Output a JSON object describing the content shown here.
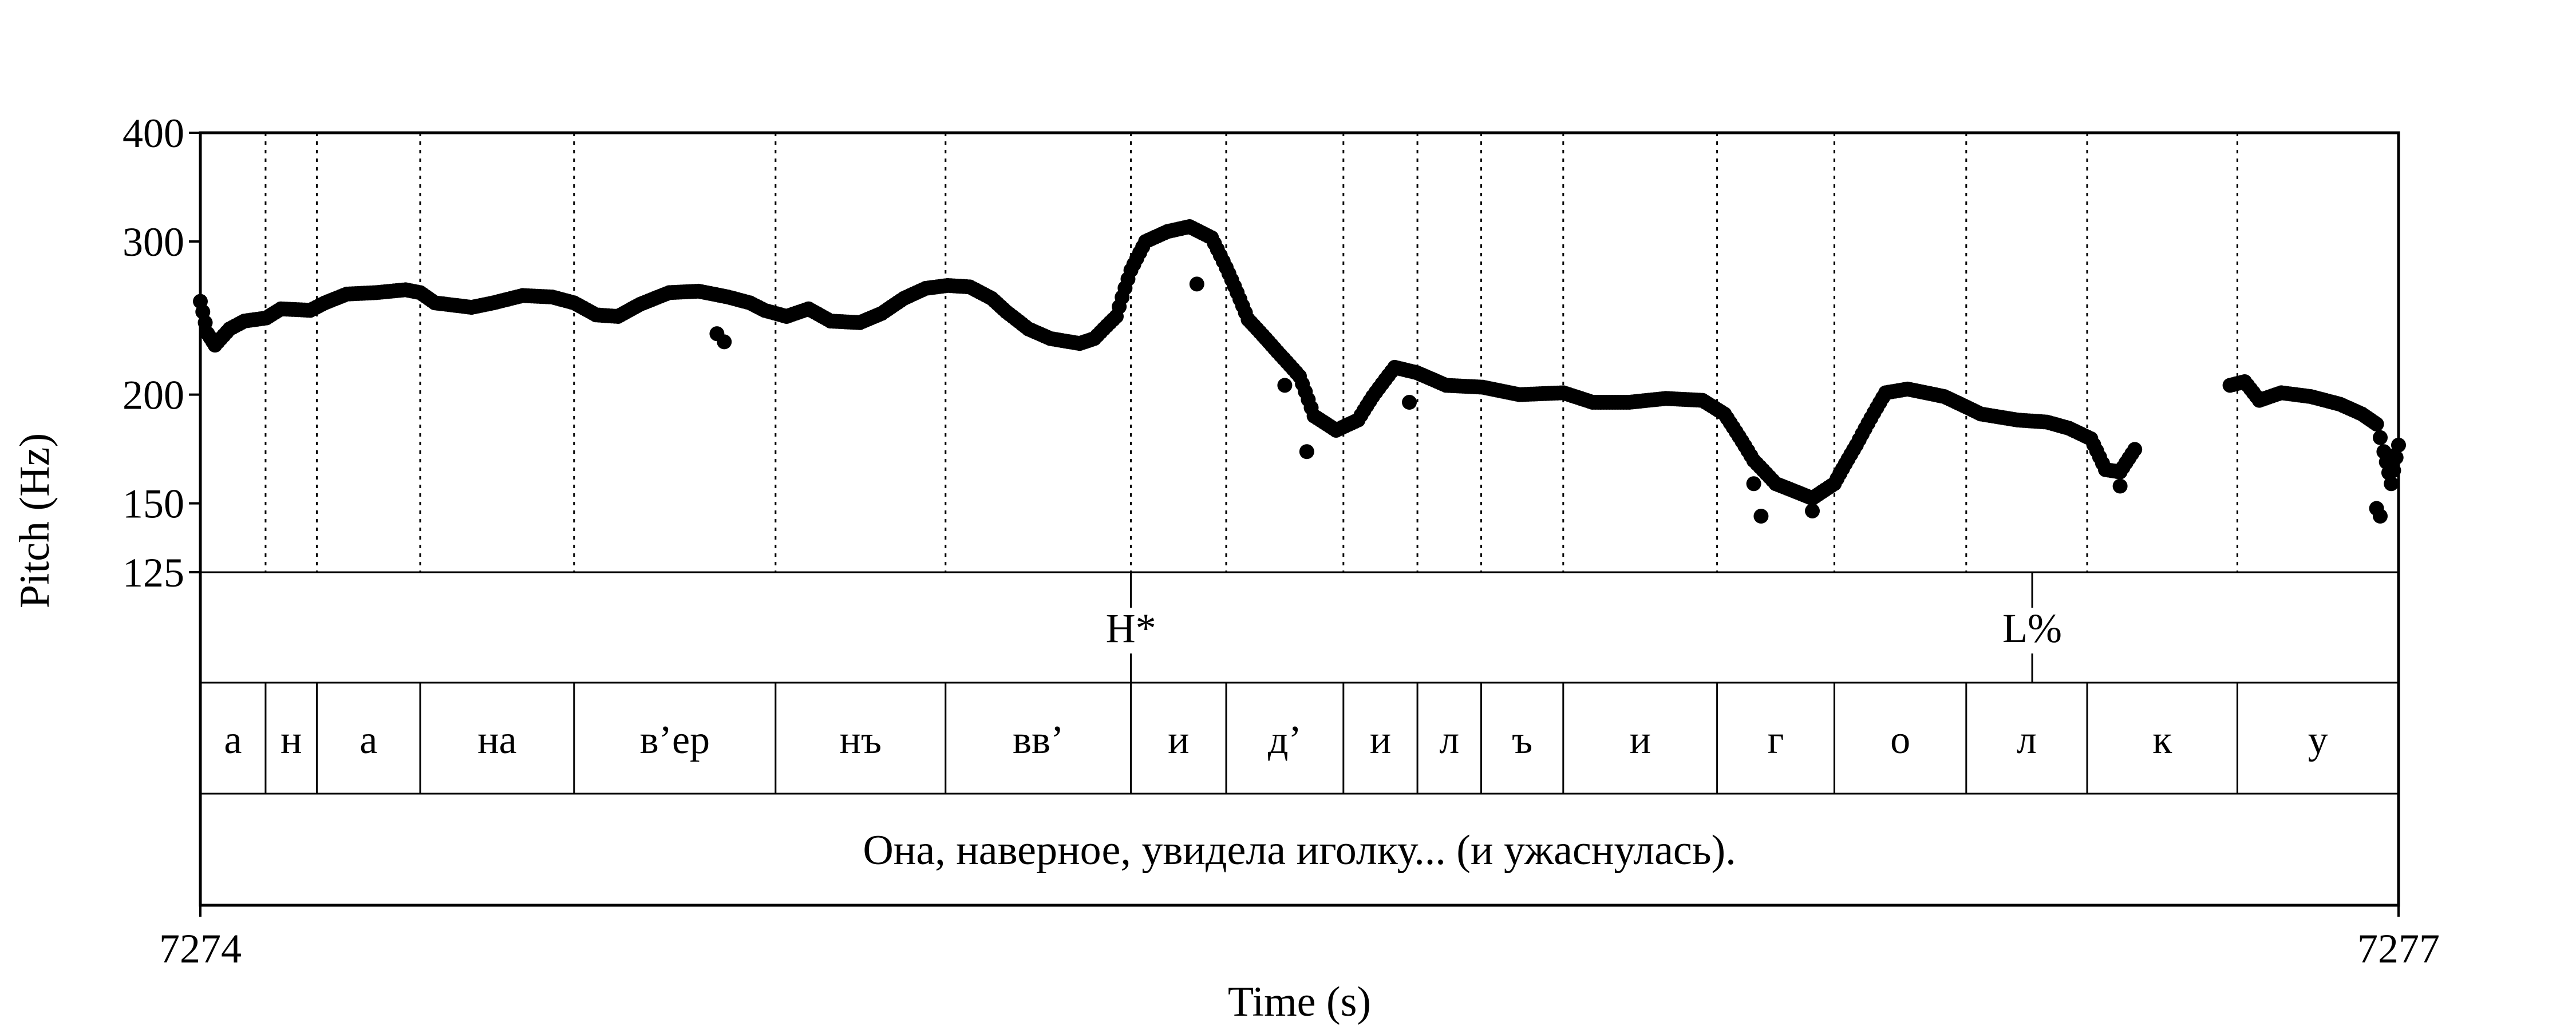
{
  "chart_data": {
    "type": "scatter",
    "title": "",
    "xlabel": "Time (s)",
    "ylabel": "Pitch (Hz)",
    "xlim": [
      7274,
      7277
    ],
    "ylim": [
      125,
      400
    ],
    "y_scale": "log",
    "x_tick_labels": [
      "7274",
      "7277"
    ],
    "y_ticks": [
      125,
      150,
      200,
      300,
      400
    ],
    "y_tick_labels": [
      "125",
      "150",
      "200",
      "300",
      "400"
    ],
    "marker_color": "#000000",
    "tiers": {
      "tones": [
        {
          "time": 7275.27,
          "label": "H*"
        },
        {
          "time": 7276.5,
          "label": "L%"
        }
      ],
      "segments": [
        {
          "start": 7274.0,
          "end": 7274.089,
          "label": "а"
        },
        {
          "start": 7274.089,
          "end": 7274.159,
          "label": "н"
        },
        {
          "start": 7274.159,
          "end": 7274.3,
          "label": "а"
        },
        {
          "start": 7274.3,
          "end": 7274.51,
          "label": "на"
        },
        {
          "start": 7274.51,
          "end": 7274.785,
          "label": "в’ер"
        },
        {
          "start": 7274.785,
          "end": 7275.017,
          "label": "нъ"
        },
        {
          "start": 7275.017,
          "end": 7275.27,
          "label": "вв’"
        },
        {
          "start": 7275.27,
          "end": 7275.4,
          "label": "и"
        },
        {
          "start": 7275.4,
          "end": 7275.56,
          "label": "д’"
        },
        {
          "start": 7275.56,
          "end": 7275.661,
          "label": "и"
        },
        {
          "start": 7275.661,
          "end": 7275.748,
          "label": "л"
        },
        {
          "start": 7275.748,
          "end": 7275.86,
          "label": "ъ"
        },
        {
          "start": 7275.86,
          "end": 7276.07,
          "label": "и"
        },
        {
          "start": 7276.07,
          "end": 7276.23,
          "label": "г"
        },
        {
          "start": 7276.23,
          "end": 7276.41,
          "label": "о"
        },
        {
          "start": 7276.41,
          "end": 7276.575,
          "label": "л"
        },
        {
          "start": 7276.575,
          "end": 7276.78,
          "label": "к"
        },
        {
          "start": 7276.78,
          "end": 7277.0,
          "label": "у"
        }
      ],
      "sentence": {
        "start": 7274.0,
        "end": 7277.0,
        "label": "Она, наверное, увидела иголку... (и ужаснулась)."
      }
    },
    "pitch_keyframes": [
      [
        7274.0,
        256
      ],
      [
        7274.01,
        235
      ],
      [
        7274.02,
        228
      ],
      [
        7274.04,
        238
      ],
      [
        7274.06,
        243
      ],
      [
        7274.09,
        245
      ],
      [
        7274.11,
        251
      ],
      [
        7274.15,
        250
      ],
      [
        7274.17,
        255
      ],
      [
        7274.2,
        261
      ],
      [
        7274.24,
        262
      ],
      [
        7274.28,
        264
      ],
      [
        7274.3,
        262
      ],
      [
        7274.32,
        255
      ],
      [
        7274.37,
        252
      ],
      [
        7274.4,
        255
      ],
      [
        7274.44,
        260
      ],
      [
        7274.48,
        259
      ],
      [
        7274.51,
        255
      ],
      [
        7274.54,
        247
      ],
      [
        7274.57,
        246
      ],
      [
        7274.6,
        254
      ],
      [
        7274.64,
        262
      ],
      [
        7274.68,
        263
      ],
      [
        7274.72,
        259
      ],
      [
        7274.75,
        255
      ],
      [
        7274.77,
        250
      ],
      [
        7274.8,
        246
      ],
      [
        7274.83,
        251
      ],
      [
        7274.86,
        243
      ],
      [
        7274.9,
        242
      ],
      [
        7274.93,
        248
      ],
      [
        7274.96,
        258
      ],
      [
        7274.99,
        265
      ],
      [
        7275.02,
        267
      ],
      [
        7275.05,
        266
      ],
      [
        7275.08,
        258
      ],
      [
        7275.1,
        249
      ],
      [
        7275.13,
        238
      ],
      [
        7275.16,
        232
      ],
      [
        7275.2,
        229
      ],
      [
        7275.22,
        232
      ],
      [
        7275.25,
        246
      ],
      [
        7275.27,
        278
      ],
      [
        7275.29,
        300
      ],
      [
        7275.32,
        308
      ],
      [
        7275.35,
        312
      ],
      [
        7275.38,
        303
      ],
      [
        7275.4,
        280
      ],
      [
        7275.43,
        244
      ],
      [
        7275.47,
        224
      ],
      [
        7275.5,
        210
      ],
      [
        7275.52,
        189
      ],
      [
        7275.55,
        182
      ],
      [
        7275.58,
        187
      ],
      [
        7275.6,
        199
      ],
      [
        7275.63,
        215
      ],
      [
        7275.66,
        212
      ],
      [
        7275.7,
        205
      ],
      [
        7275.75,
        204
      ],
      [
        7275.8,
        200
      ],
      [
        7275.86,
        201
      ],
      [
        7275.9,
        196
      ],
      [
        7275.95,
        196
      ],
      [
        7276.0,
        198
      ],
      [
        7276.05,
        197
      ],
      [
        7276.08,
        190
      ],
      [
        7276.12,
        168
      ],
      [
        7276.15,
        158
      ],
      [
        7276.2,
        152
      ],
      [
        7276.23,
        158
      ],
      [
        7276.26,
        175
      ],
      [
        7276.3,
        201
      ],
      [
        7276.33,
        203
      ],
      [
        7276.38,
        199
      ],
      [
        7276.43,
        190
      ],
      [
        7276.48,
        187
      ],
      [
        7276.52,
        186
      ],
      [
        7276.55,
        183
      ],
      [
        7276.58,
        178
      ],
      [
        7276.6,
        164
      ],
      [
        7276.62,
        163
      ],
      [
        7276.64,
        173
      ]
    ],
    "pitch_segment_2_keyframes": [
      [
        7276.77,
        205
      ],
      [
        7276.79,
        207
      ],
      [
        7276.81,
        197
      ],
      [
        7276.84,
        201
      ],
      [
        7276.88,
        199
      ],
      [
        7276.92,
        195
      ],
      [
        7276.95,
        190
      ],
      [
        7276.97,
        185
      ],
      [
        7276.98,
        172
      ],
      [
        7276.99,
        158
      ],
      [
        7277.0,
        175
      ]
    ],
    "pitch_outliers": [
      [
        7274.705,
        235
      ],
      [
        7274.715,
        230
      ],
      [
        7275.36,
        268
      ],
      [
        7275.48,
        205
      ],
      [
        7275.51,
        172
      ],
      [
        7275.65,
        196
      ],
      [
        7276.12,
        158
      ],
      [
        7276.13,
        145
      ],
      [
        7276.2,
        147
      ],
      [
        7276.62,
        157
      ],
      [
        7276.97,
        148
      ],
      [
        7276.975,
        145
      ],
      [
        7276.99,
        170
      ]
    ]
  }
}
